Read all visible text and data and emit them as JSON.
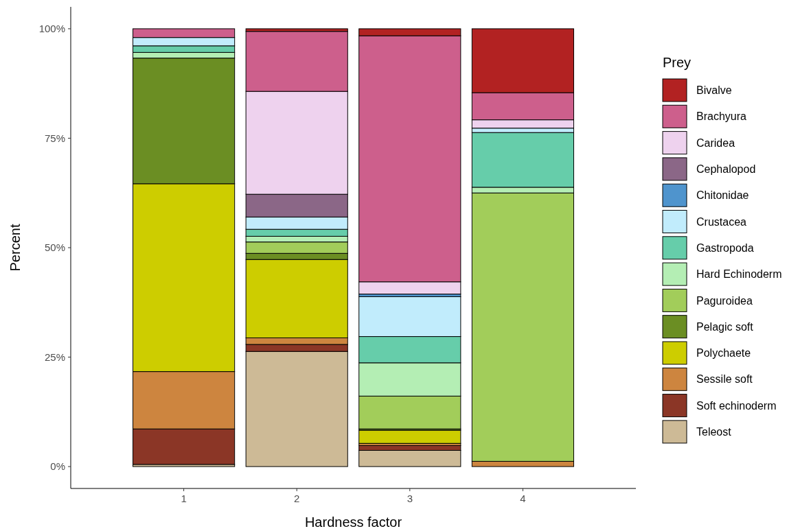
{
  "chart_data": {
    "type": "bar",
    "stacked": true,
    "xlabel": "Hardness factor",
    "ylabel": "Percent",
    "legend_title": "Prey",
    "legend": "right",
    "grid": false,
    "categories": [
      "1",
      "2",
      "3",
      "4"
    ],
    "ylim": [
      -5,
      105
    ],
    "yticks": [
      {
        "value": 0,
        "label": "0%"
      },
      {
        "value": 25,
        "label": "25%"
      },
      {
        "value": 50,
        "label": "50%"
      },
      {
        "value": 75,
        "label": "75%"
      },
      {
        "value": 100,
        "label": "100%"
      }
    ],
    "series": [
      {
        "name": "Teleost",
        "color": "#cdba96",
        "values": [
          0.5,
          26.3,
          3.7,
          null
        ]
      },
      {
        "name": "Soft echinoderm",
        "color": "#8b3626",
        "values": [
          8.1,
          1.6,
          1.1,
          null
        ]
      },
      {
        "name": "Sessile soft",
        "color": "#cd853f",
        "values": [
          13.1,
          1.5,
          0.5,
          1.2
        ]
      },
      {
        "name": "Polychaete",
        "color": "#cdcd00",
        "values": [
          42.9,
          17.9,
          3.0,
          null
        ]
      },
      {
        "name": "Pelagic soft",
        "color": "#6b8e23",
        "values": [
          28.7,
          1.4,
          0.3,
          null
        ]
      },
      {
        "name": "Paguroidea",
        "color": "#a2cd5a",
        "values": [
          null,
          2.6,
          7.5,
          61.3
        ]
      },
      {
        "name": "Hard Echinoderm",
        "color": "#b4eeb4",
        "values": [
          1.3,
          1.3,
          7.6,
          1.3
        ]
      },
      {
        "name": "Gastropoda",
        "color": "#66cdaa",
        "values": [
          1.5,
          1.6,
          6.0,
          12.5
        ]
      },
      {
        "name": "Crustacea",
        "color": "#c1ecfc",
        "values": [
          1.9,
          2.8,
          9.1,
          1.0
        ]
      },
      {
        "name": "Chitonidae",
        "color": "#4f94cd",
        "values": [
          null,
          null,
          0.6,
          null
        ]
      },
      {
        "name": "Cephalopod",
        "color": "#8b6787",
        "values": [
          null,
          5.2,
          null,
          null
        ]
      },
      {
        "name": "Caridea",
        "color": "#eed2ee",
        "values": [
          null,
          23.5,
          2.8,
          1.9
        ]
      },
      {
        "name": "Brachyura",
        "color": "#cd5f8c",
        "values": [
          2.0,
          13.7,
          56.2,
          6.2
        ]
      },
      {
        "name": "Bivalve",
        "color": "#b22222",
        "values": [
          null,
          0.6,
          1.6,
          14.6
        ]
      }
    ]
  }
}
